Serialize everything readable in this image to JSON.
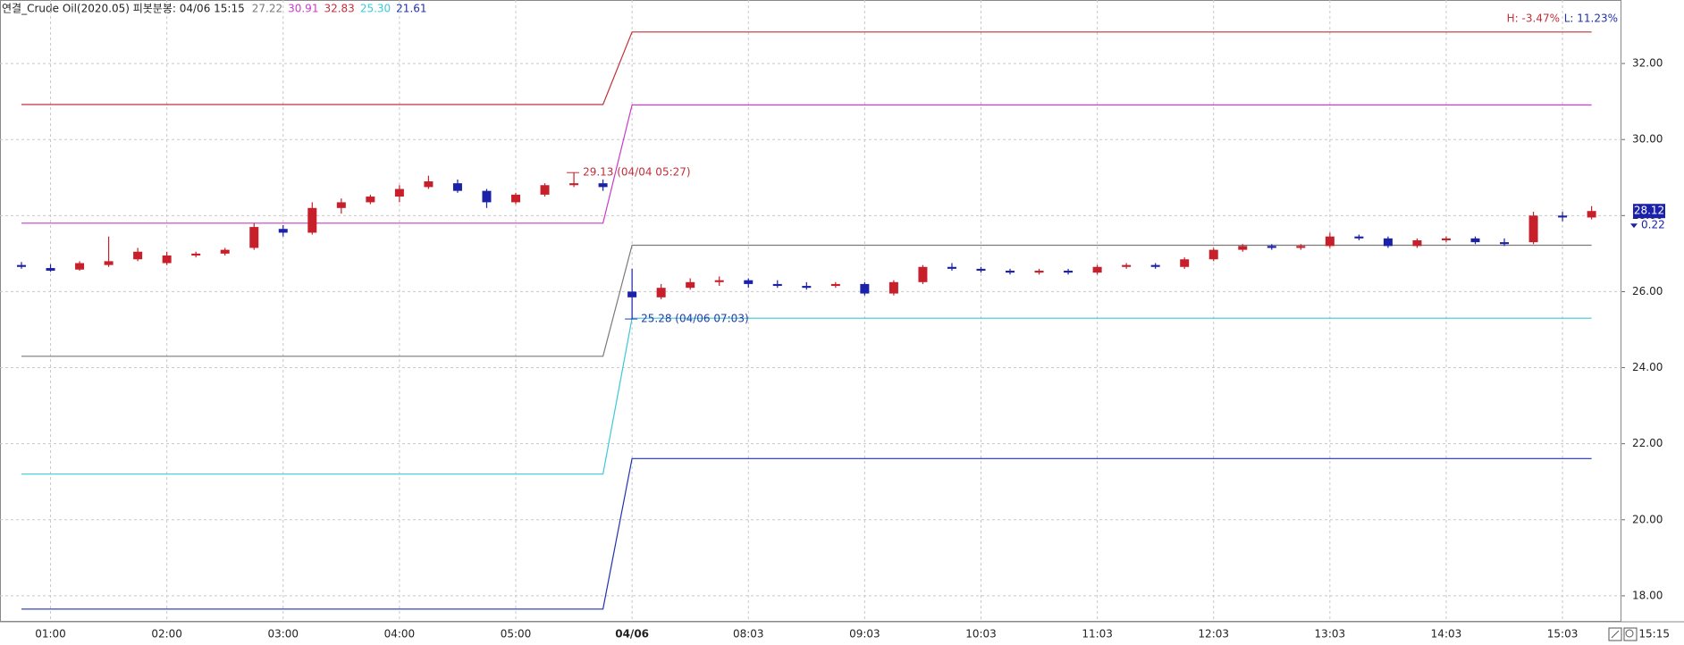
{
  "chart_data": {
    "type": "candlestick",
    "title": "연결_Crude Oil(2020.05) 피봇분봉: 04/06 15:15",
    "header_values": [
      "27.22",
      "30.91",
      "32.83",
      "25.30",
      "21.61"
    ],
    "time": "15:15",
    "categories": [
      null,
      "01:00",
      null,
      null,
      null,
      "02:00",
      null,
      null,
      null,
      "03:00",
      null,
      null,
      null,
      "04:00",
      null,
      null,
      null,
      "05:00",
      null,
      null,
      null,
      "04/06",
      null,
      null,
      null,
      "08:03",
      null,
      null,
      null,
      "09:03",
      null,
      null,
      null,
      "10:03",
      null,
      null,
      null,
      "11:03",
      null,
      null,
      null,
      "12:03",
      null,
      null,
      null,
      "13:03",
      null,
      null,
      null,
      "14:03",
      null,
      null,
      null,
      "15:03",
      null
    ],
    "open": [
      26.7,
      26.62,
      26.58,
      26.7,
      26.85,
      26.75,
      26.95,
      27.0,
      27.15,
      27.65,
      27.55,
      28.2,
      28.35,
      28.5,
      28.75,
      28.85,
      28.65,
      28.35,
      28.55,
      28.8,
      28.85,
      26.0,
      25.85,
      26.1,
      26.25,
      26.3,
      26.2,
      26.15,
      26.15,
      26.2,
      25.95,
      26.25,
      26.65,
      26.6,
      26.55,
      26.5,
      26.55,
      26.5,
      26.65,
      26.7,
      26.65,
      26.85,
      27.1,
      27.2,
      27.15,
      27.2,
      27.45,
      27.4,
      27.2,
      27.35,
      27.4,
      27.3,
      27.3,
      28.0,
      27.95
    ],
    "high": [
      26.78,
      26.72,
      26.8,
      27.45,
      27.15,
      27.05,
      27.05,
      27.15,
      27.8,
      27.75,
      28.35,
      28.45,
      28.55,
      28.8,
      29.05,
      28.95,
      28.7,
      28.6,
      28.85,
      29.13,
      28.95,
      26.6,
      26.2,
      26.35,
      26.4,
      26.35,
      26.3,
      26.25,
      26.25,
      26.25,
      26.3,
      26.7,
      26.75,
      26.65,
      26.6,
      26.6,
      26.6,
      26.7,
      26.75,
      26.75,
      26.9,
      27.15,
      27.25,
      27.25,
      27.25,
      27.55,
      27.5,
      27.45,
      27.4,
      27.45,
      27.45,
      27.4,
      28.1,
      28.1,
      28.25
    ],
    "low": [
      26.6,
      26.52,
      26.55,
      26.65,
      26.8,
      26.7,
      26.9,
      26.95,
      27.1,
      27.45,
      27.5,
      28.05,
      28.3,
      28.35,
      28.7,
      28.6,
      28.2,
      28.3,
      28.5,
      28.75,
      28.65,
      25.28,
      25.8,
      26.05,
      26.15,
      26.1,
      26.1,
      26.05,
      26.1,
      25.9,
      25.9,
      26.2,
      26.55,
      26.5,
      26.45,
      26.45,
      26.45,
      26.45,
      26.6,
      26.6,
      26.6,
      26.8,
      27.05,
      27.1,
      27.1,
      27.15,
      27.35,
      27.15,
      27.15,
      27.3,
      27.25,
      27.2,
      27.25,
      27.85,
      27.9
    ],
    "close": [
      26.65,
      26.55,
      26.75,
      26.8,
      27.05,
      26.95,
      27.0,
      27.1,
      27.7,
      27.55,
      28.2,
      28.35,
      28.5,
      28.7,
      28.9,
      28.65,
      28.35,
      28.55,
      28.8,
      28.85,
      28.75,
      25.85,
      26.1,
      26.25,
      26.3,
      26.2,
      26.15,
      26.1,
      26.2,
      25.95,
      26.25,
      26.65,
      26.6,
      26.55,
      26.5,
      26.55,
      26.5,
      26.65,
      26.7,
      26.65,
      26.85,
      27.1,
      27.2,
      27.15,
      27.2,
      27.45,
      27.4,
      27.2,
      27.35,
      27.4,
      27.3,
      27.25,
      28.0,
      27.95,
      28.12
    ],
    "up_color": "#c8202a",
    "down_color": "#1c22a8",
    "change": 0.22,
    "series": [
      {
        "color": "#7a7a7a",
        "values": [
          24.3,
          24.3,
          24.3,
          24.3,
          24.3,
          24.3,
          24.3,
          24.3,
          24.3,
          24.3,
          24.3,
          24.3,
          24.3,
          24.3,
          24.3,
          24.3,
          24.3,
          24.3,
          24.3,
          24.3,
          24.3,
          27.22,
          27.22,
          27.22,
          27.22,
          27.22,
          27.22,
          27.22,
          27.22,
          27.22,
          27.22,
          27.22,
          27.22,
          27.22,
          27.22,
          27.22,
          27.22,
          27.22,
          27.22,
          27.22,
          27.22,
          27.22,
          27.22,
          27.22,
          27.22,
          27.22,
          27.22,
          27.22,
          27.22,
          27.22,
          27.22,
          27.22,
          27.22,
          27.22,
          27.22
        ]
      },
      {
        "color": "#c83cc8",
        "values": [
          27.8,
          27.8,
          27.8,
          27.8,
          27.8,
          27.8,
          27.8,
          27.8,
          27.8,
          27.8,
          27.8,
          27.8,
          27.8,
          27.8,
          27.8,
          27.8,
          27.8,
          27.8,
          27.8,
          27.8,
          27.8,
          30.91,
          30.91,
          30.91,
          30.91,
          30.91,
          30.91,
          30.91,
          30.91,
          30.91,
          30.91,
          30.91,
          30.91,
          30.91,
          30.91,
          30.91,
          30.91,
          30.91,
          30.91,
          30.91,
          30.91,
          30.91,
          30.91,
          30.91,
          30.91,
          30.91,
          30.91,
          30.91,
          30.91,
          30.91,
          30.91,
          30.91,
          30.91,
          30.91,
          30.91
        ]
      },
      {
        "color": "#c0303a",
        "values": [
          30.92,
          30.92,
          30.92,
          30.92,
          30.92,
          30.92,
          30.92,
          30.92,
          30.92,
          30.92,
          30.92,
          30.92,
          30.92,
          30.92,
          30.92,
          30.92,
          30.92,
          30.92,
          30.92,
          30.92,
          30.92,
          32.83,
          32.83,
          32.83,
          32.83,
          32.83,
          32.83,
          32.83,
          32.83,
          32.83,
          32.83,
          32.83,
          32.83,
          32.83,
          32.83,
          32.83,
          32.83,
          32.83,
          32.83,
          32.83,
          32.83,
          32.83,
          32.83,
          32.83,
          32.83,
          32.83,
          32.83,
          32.83,
          32.83,
          32.83,
          32.83,
          32.83,
          32.83,
          32.83,
          32.83
        ]
      },
      {
        "color": "#3cc8d8",
        "values": [
          21.2,
          21.2,
          21.2,
          21.2,
          21.2,
          21.2,
          21.2,
          21.2,
          21.2,
          21.2,
          21.2,
          21.2,
          21.2,
          21.2,
          21.2,
          21.2,
          21.2,
          21.2,
          21.2,
          21.2,
          21.2,
          25.3,
          25.3,
          25.3,
          25.3,
          25.3,
          25.3,
          25.3,
          25.3,
          25.3,
          25.3,
          25.3,
          25.3,
          25.3,
          25.3,
          25.3,
          25.3,
          25.3,
          25.3,
          25.3,
          25.3,
          25.3,
          25.3,
          25.3,
          25.3,
          25.3,
          25.3,
          25.3,
          25.3,
          25.3,
          25.3,
          25.3,
          25.3,
          25.3,
          25.3
        ]
      },
      {
        "color": "#2030b0",
        "values": [
          17.65,
          17.65,
          17.65,
          17.65,
          17.65,
          17.65,
          17.65,
          17.65,
          17.65,
          17.65,
          17.65,
          17.65,
          17.65,
          17.65,
          17.65,
          17.65,
          17.65,
          17.65,
          17.65,
          17.65,
          17.65,
          21.61,
          21.61,
          21.61,
          21.61,
          21.61,
          21.61,
          21.61,
          21.61,
          21.61,
          21.61,
          21.61,
          21.61,
          21.61,
          21.61,
          21.61,
          21.61,
          21.61,
          21.61,
          21.61,
          21.61,
          21.61,
          21.61,
          21.61,
          21.61,
          21.61,
          21.61,
          21.61,
          21.61,
          21.61,
          21.61,
          21.61,
          21.61,
          21.61,
          21.61
        ]
      }
    ],
    "annotations": [
      {
        "text": "29.13 (04/04 05:27)",
        "index": 19,
        "value": 29.13,
        "color": "#c0303a"
      },
      {
        "text": "25.28 (04/06 07:03)",
        "index": 21,
        "value": 25.28,
        "color": "#2040a8"
      }
    ],
    "range_text": [
      "H: -3.47%",
      "L: 11.23%"
    ],
    "ylim": [
      17.34,
      33.67
    ],
    "yticks": [
      {
        "value": 18,
        "label": "18.00"
      },
      {
        "value": 20,
        "label": "20.00"
      },
      {
        "value": 22,
        "label": "22.00"
      },
      {
        "value": 24,
        "label": "24.00"
      },
      {
        "value": 26,
        "label": "26.00"
      },
      {
        "value": 28,
        "label": "28.00"
      },
      {
        "value": 30,
        "label": "30.00"
      },
      {
        "value": 32,
        "label": "32.00"
      }
    ],
    "grid": true
  }
}
